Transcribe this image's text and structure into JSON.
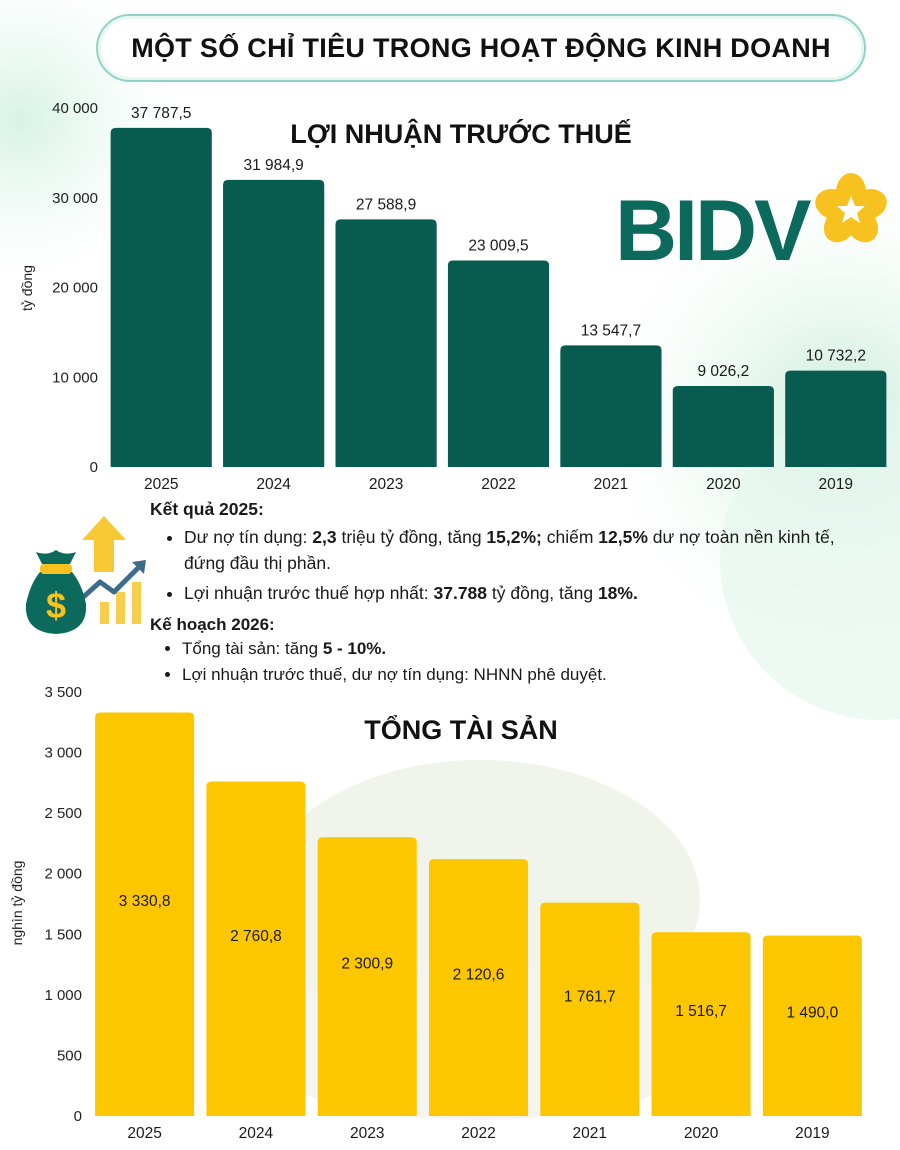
{
  "page": {
    "title": "MỘT SỐ CHỈ TIÊU TRONG HOẠT ĐỘNG KINH DOANH",
    "logo_text": "BIDV"
  },
  "colors": {
    "profit_bar": "#075c4f",
    "assets_bar": "#fcc600",
    "logo_text": "#0b6a5c",
    "logo_flower": "#f7c21f",
    "title_border": "#8fd3c8"
  },
  "icons": [
    "money-bag-icon",
    "growth-chart-icon",
    "up-arrow-icon",
    "bidv-flower-icon"
  ],
  "chart_data": [
    {
      "type": "bar",
      "title": "LỢI NHUẬN TRƯỚC THUẾ",
      "xlabel": "",
      "ylabel": "tỷ đồng",
      "categories": [
        "2025",
        "2024",
        "2023",
        "2022",
        "2021",
        "2020",
        "2019"
      ],
      "values": [
        37787.5,
        31984.9,
        27588.9,
        23009.5,
        13547.7,
        9026.2,
        10732.2
      ],
      "value_labels": [
        "37 787,5",
        "31 984,9",
        "27 588,9",
        "23 009,5",
        "13 547,7",
        "9 026,2",
        "10 732,2"
      ],
      "ylim": [
        0,
        40000
      ],
      "yticks": [
        0,
        10000,
        20000,
        30000,
        40000
      ],
      "ytick_labels": [
        "0",
        "10 000",
        "20 000",
        "30 000",
        "40 000"
      ],
      "label_position": "above",
      "grid": false,
      "legend": "none"
    },
    {
      "type": "bar",
      "title": "TỔNG TÀI SẢN",
      "xlabel": "",
      "ylabel": "nghìn tỷ đồng",
      "categories": [
        "2025",
        "2024",
        "2023",
        "2022",
        "2021",
        "2020",
        "2019"
      ],
      "values": [
        3330.8,
        2760.8,
        2300.9,
        2120.6,
        1761.7,
        1516.7,
        1490.0
      ],
      "value_labels": [
        "3 330,8",
        "2 760,8",
        "2 300,9",
        "2 120,6",
        "1 761,7",
        "1 516,7",
        "1 490,0"
      ],
      "ylim": [
        0,
        3500
      ],
      "yticks": [
        0,
        500,
        1000,
        1500,
        2000,
        2500,
        3000,
        3500
      ],
      "ytick_labels": [
        "0",
        "500",
        "1 000",
        "1 500",
        "2 000",
        "2 500",
        "3 000",
        "3 500"
      ],
      "label_position": "inside",
      "grid": false,
      "legend": "none"
    }
  ],
  "results": {
    "heading": "Kết quả 2025:",
    "item1": {
      "t1": "Dư nợ tín dụng: ",
      "b1": "2,3",
      "t2": " triệu tỷ đồng, tăng ",
      "b2": "15,2%;",
      "t3": " chiếm ",
      "b3": "12,5%",
      "t4": " dư nợ toàn nền kinh tế, đứng đầu thị phần."
    },
    "item2": {
      "t1": "Lợi nhuận trước thuế hợp nhất: ",
      "b1": "37.788",
      "t2": " tỷ đồng, tăng ",
      "b2": "18%."
    }
  },
  "plan": {
    "heading": "Kế hoạch 2026:",
    "item1": {
      "t1": "Tổng tài sản: tăng ",
      "b1": "5 - 10%."
    },
    "item2": {
      "t1": "Lợi nhuận trước thuế, dư nợ tín dụng: NHNN phê duyệt."
    }
  }
}
